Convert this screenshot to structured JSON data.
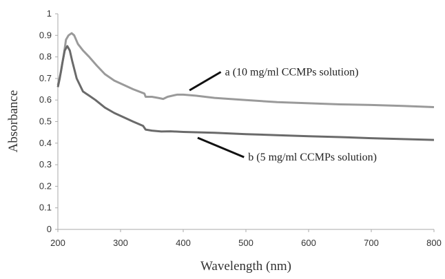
{
  "chart_data": {
    "type": "line",
    "xlabel": "Wavelength (nm)",
    "ylabel": "Absorbance",
    "xlim": [
      200,
      800
    ],
    "ylim": [
      0,
      1
    ],
    "x_ticks": [
      "200",
      "300",
      "400",
      "500",
      "600",
      "700",
      "800"
    ],
    "y_ticks": [
      "0",
      "0.1",
      "0.2",
      "0.3",
      "0.4",
      "0.5",
      "0.6",
      "0.7",
      "0.8",
      "0.9",
      "1"
    ],
    "grid": false,
    "series": [
      {
        "color": "#9a9a9a",
        "points": [
          [
            200,
            0.67
          ],
          [
            205,
            0.73
          ],
          [
            210,
            0.82
          ],
          [
            213,
            0.88
          ],
          [
            217,
            0.9
          ],
          [
            222,
            0.91
          ],
          [
            226,
            0.9
          ],
          [
            232,
            0.86
          ],
          [
            240,
            0.83
          ],
          [
            250,
            0.8
          ],
          [
            262,
            0.76
          ],
          [
            275,
            0.72
          ],
          [
            290,
            0.69
          ],
          [
            305,
            0.67
          ],
          [
            320,
            0.65
          ],
          [
            338,
            0.63
          ],
          [
            340,
            0.615
          ],
          [
            350,
            0.615
          ],
          [
            360,
            0.61
          ],
          [
            368,
            0.605
          ],
          [
            375,
            0.615
          ],
          [
            390,
            0.625
          ],
          [
            400,
            0.625
          ],
          [
            420,
            0.62
          ],
          [
            450,
            0.61
          ],
          [
            500,
            0.6
          ],
          [
            550,
            0.59
          ],
          [
            600,
            0.585
          ],
          [
            650,
            0.58
          ],
          [
            700,
            0.577
          ],
          [
            750,
            0.573
          ],
          [
            800,
            0.567
          ]
        ]
      },
      {
        "color": "#6a6a6a",
        "points": [
          [
            200,
            0.66
          ],
          [
            203,
            0.7
          ],
          [
            207,
            0.77
          ],
          [
            211,
            0.83
          ],
          [
            215,
            0.85
          ],
          [
            219,
            0.83
          ],
          [
            223,
            0.78
          ],
          [
            230,
            0.7
          ],
          [
            240,
            0.64
          ],
          [
            250,
            0.62
          ],
          [
            260,
            0.6
          ],
          [
            275,
            0.565
          ],
          [
            290,
            0.54
          ],
          [
            305,
            0.52
          ],
          [
            320,
            0.5
          ],
          [
            336,
            0.48
          ],
          [
            340,
            0.463
          ],
          [
            350,
            0.458
          ],
          [
            365,
            0.454
          ],
          [
            380,
            0.455
          ],
          [
            400,
            0.452
          ],
          [
            450,
            0.448
          ],
          [
            500,
            0.442
          ],
          [
            550,
            0.437
          ],
          [
            600,
            0.432
          ],
          [
            650,
            0.428
          ],
          [
            700,
            0.423
          ],
          [
            750,
            0.419
          ],
          [
            800,
            0.415
          ]
        ]
      }
    ],
    "annotations": [
      {
        "text": "a  (10 mg/ml CCMPs solution)",
        "pointer_from": [
          410,
          0.645
        ],
        "pointer_to": [
          460,
          0.73
        ]
      },
      {
        "text": "b (5 mg/ml CCMPs solution)",
        "pointer_from": [
          423,
          0.425
        ],
        "pointer_to": [
          497,
          0.335
        ]
      }
    ]
  }
}
